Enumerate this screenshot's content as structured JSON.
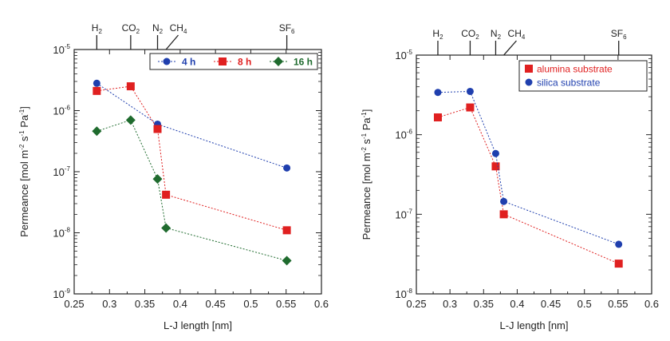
{
  "chart_data": [
    {
      "type": "scatter",
      "xlabel": "L-J length [nm]",
      "ylabel": "Permeance [mol m-2 s-1 Pa-1]",
      "xlim": [
        0.25,
        0.6
      ],
      "ylim": [
        1e-09,
        1e-05
      ],
      "yscale": "log",
      "x_ticks": [
        "0.25",
        "0.3",
        "0.35",
        "0.4",
        "0.45",
        "0.5",
        "0.55",
        "0.6"
      ],
      "y_ticks": [
        "10-9",
        "10-8",
        "10-7",
        "10-6",
        "10-5"
      ],
      "legend_position": "top-right",
      "gases": [
        {
          "base": "H",
          "sub": "2",
          "x": 0.282
        },
        {
          "base": "CO",
          "sub": "2",
          "x": 0.33
        },
        {
          "base": "N",
          "sub": "2",
          "x": 0.368
        },
        {
          "base": "CH",
          "sub": "4",
          "x": 0.38
        },
        {
          "base": "SF",
          "sub": "6",
          "x": 0.551
        }
      ],
      "series": [
        {
          "name": "4 h",
          "color": "#1f3fae",
          "marker": "circle",
          "x": [
            0.282,
            0.368,
            0.551
          ],
          "y": [
            2.8e-06,
            6e-07,
            1.15e-07
          ]
        },
        {
          "name": "8 h",
          "color": "#e02020",
          "marker": "square",
          "x": [
            0.282,
            0.33,
            0.368,
            0.38,
            0.551
          ],
          "y": [
            2.1e-06,
            2.5e-06,
            5e-07,
            4.2e-08,
            1.1e-08
          ]
        },
        {
          "name": "16 h",
          "color": "#1f6b2e",
          "marker": "diamond",
          "x": [
            0.282,
            0.33,
            0.368,
            0.38,
            0.551
          ],
          "y": [
            4.6e-07,
            7e-07,
            7.6e-08,
            1.2e-08,
            3.5e-09
          ]
        }
      ]
    },
    {
      "type": "scatter",
      "xlabel": "L-J length [nm]",
      "ylabel": "Permeance [mol m-2 s-1 Pa-1]",
      "xlim": [
        0.25,
        0.6
      ],
      "ylim": [
        1e-08,
        1e-05
      ],
      "yscale": "log",
      "x_ticks": [
        "0.25",
        "0.3",
        "0.35",
        "0.4",
        "0.45",
        "0.5",
        "0.55",
        "0.6"
      ],
      "y_ticks": [
        "10-8",
        "10-7",
        "10-6",
        "10-5"
      ],
      "legend_position": "top-right",
      "gases": [
        {
          "base": "H",
          "sub": "2",
          "x": 0.282
        },
        {
          "base": "CO",
          "sub": "2",
          "x": 0.33
        },
        {
          "base": "N",
          "sub": "2",
          "x": 0.368
        },
        {
          "base": "CH",
          "sub": "4",
          "x": 0.38
        },
        {
          "base": "SF",
          "sub": "6",
          "x": 0.551
        }
      ],
      "series": [
        {
          "name": "alumina substrate",
          "color": "#e02020",
          "marker": "square",
          "x": [
            0.282,
            0.33,
            0.368,
            0.38,
            0.551
          ],
          "y": [
            1.65e-06,
            2.2e-06,
            4e-07,
            1e-07,
            2.4e-08
          ]
        },
        {
          "name": "silica substrate",
          "color": "#1f3fae",
          "marker": "circle",
          "x": [
            0.282,
            0.33,
            0.368,
            0.38,
            0.551
          ],
          "y": [
            3.4e-06,
            3.5e-06,
            5.8e-07,
            1.45e-07,
            4.2e-08
          ]
        }
      ]
    }
  ]
}
